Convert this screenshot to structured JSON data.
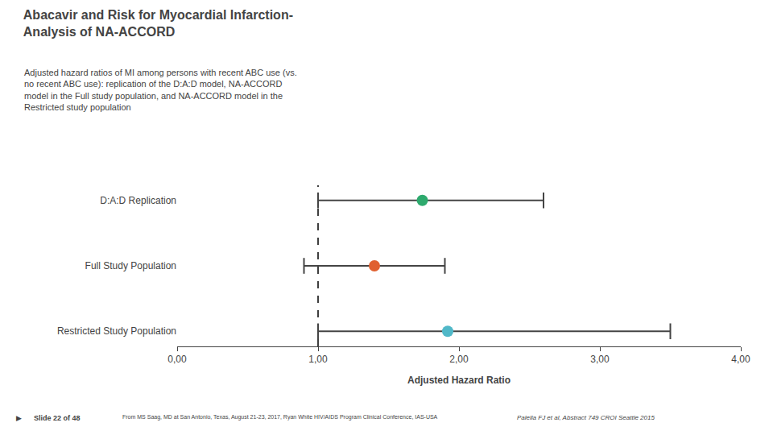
{
  "chart_data": {
    "type": "forest",
    "title": "Abacavir and Risk for Myocardial Infarction-\nAnalysis of NA-ACCORD",
    "subtitle": "Adjusted hazard ratios of MI among persons with recent ABC use (vs.\nno recent ABC use): replication of the D:A:D model, NA-ACCORD\nmodel in the Full study population, and NA-ACCORD model in the\nRestricted study population",
    "categories": [
      "D:A:D Replication",
      "Full Study Population",
      "Restricted Study Population"
    ],
    "values": [
      1.74,
      1.4,
      1.92
    ],
    "ci_lower": [
      1.0,
      0.9,
      1.0
    ],
    "ci_upper": [
      2.6,
      1.9,
      3.5
    ],
    "colors": [
      "#2eaa6e",
      "#e06030",
      "#50b8c8"
    ],
    "ref_line": 1.0,
    "xlabel": "Adjusted Hazard Ratio",
    "xlim": [
      0.0,
      4.0
    ],
    "xticks": [
      {
        "value": 0.0,
        "label": "0,00"
      },
      {
        "value": 1.0,
        "label": "1,00"
      },
      {
        "value": 2.0,
        "label": "2,00"
      },
      {
        "value": 3.0,
        "label": "3,00"
      },
      {
        "value": 4.0,
        "label": "4,00"
      }
    ],
    "grid": false,
    "annotations": [
      "▶",
      "Slide 22 of 48",
      "From MS Saag, MD at San Antonio, Texas, August 21-23, 2017, Ryan White HIV/AIDS Program Clinical Conference, IAS-USA",
      "Palella FJ et al, Abstract 749 CROI Seattle 2015"
    ]
  }
}
